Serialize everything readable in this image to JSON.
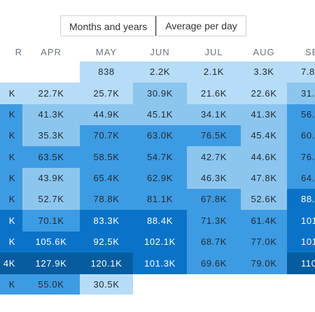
{
  "view_toggle": {
    "options": [
      "Months and years",
      "Average per day"
    ],
    "selected": "Months and years"
  },
  "colors": {
    "l1": "#b7dcf7",
    "l2": "#8cc6ef",
    "l3": "#3d9be3",
    "l4": "#0a73c7",
    "l5": "#065c9e"
  },
  "columns": [
    {
      "label": "R",
      "align": "right"
    },
    {
      "label": "APR"
    },
    {
      "label": "MAY"
    },
    {
      "label": "JUN"
    },
    {
      "label": "JUL"
    },
    {
      "label": "AUG"
    },
    {
      "label": "SE",
      "align": "left"
    }
  ],
  "rows": [
    [
      null,
      null,
      {
        "v": "838",
        "c": "l1"
      },
      {
        "v": "2.2K",
        "c": "l1"
      },
      {
        "v": "2.1K",
        "c": "l1"
      },
      {
        "v": "3.3K",
        "c": "l1"
      },
      {
        "v": "7.8",
        "c": "l1"
      }
    ],
    [
      {
        "v": "K",
        "c": "l1"
      },
      {
        "v": "22.7K",
        "c": "l1"
      },
      {
        "v": "25.7K",
        "c": "l1"
      },
      {
        "v": "30.9K",
        "c": "l2"
      },
      {
        "v": "21.6K",
        "c": "l1"
      },
      {
        "v": "22.6K",
        "c": "l1"
      },
      {
        "v": "31.",
        "c": "l2"
      }
    ],
    [
      {
        "v": "K",
        "c": "l3"
      },
      {
        "v": "41.3K",
        "c": "l2"
      },
      {
        "v": "44.9K",
        "c": "l2"
      },
      {
        "v": "45.1K",
        "c": "l2"
      },
      {
        "v": "34.1K",
        "c": "l2"
      },
      {
        "v": "41.3K",
        "c": "l2"
      },
      {
        "v": "56.",
        "c": "l3"
      }
    ],
    [
      {
        "v": "K",
        "c": "l3"
      },
      {
        "v": "35.3K",
        "c": "l2"
      },
      {
        "v": "70.7K",
        "c": "l3"
      },
      {
        "v": "63.0K",
        "c": "l3"
      },
      {
        "v": "76.5K",
        "c": "l3"
      },
      {
        "v": "45.4K",
        "c": "l2"
      },
      {
        "v": "60.",
        "c": "l3"
      }
    ],
    [
      {
        "v": "K",
        "c": "l3"
      },
      {
        "v": "63.5K",
        "c": "l3"
      },
      {
        "v": "58.5K",
        "c": "l3"
      },
      {
        "v": "54.7K",
        "c": "l3"
      },
      {
        "v": "42.7K",
        "c": "l2"
      },
      {
        "v": "44.6K",
        "c": "l2"
      },
      {
        "v": "76.",
        "c": "l3"
      }
    ],
    [
      {
        "v": "K",
        "c": "l3"
      },
      {
        "v": "43.9K",
        "c": "l2"
      },
      {
        "v": "65.4K",
        "c": "l3"
      },
      {
        "v": "62.9K",
        "c": "l3"
      },
      {
        "v": "46.3K",
        "c": "l2"
      },
      {
        "v": "47.8K",
        "c": "l2"
      },
      {
        "v": "64.",
        "c": "l3"
      }
    ],
    [
      {
        "v": "K",
        "c": "l3"
      },
      {
        "v": "52.7K",
        "c": "l2"
      },
      {
        "v": "78.8K",
        "c": "l3"
      },
      {
        "v": "81.1K",
        "c": "l3"
      },
      {
        "v": "67.8K",
        "c": "l3"
      },
      {
        "v": "52.6K",
        "c": "l2"
      },
      {
        "v": "88.",
        "c": "l4"
      }
    ],
    [
      {
        "v": "K",
        "c": "l4"
      },
      {
        "v": "70.1K",
        "c": "l3"
      },
      {
        "v": "83.3K",
        "c": "l4"
      },
      {
        "v": "88.4K",
        "c": "l4"
      },
      {
        "v": "71.3K",
        "c": "l3"
      },
      {
        "v": "61.4K",
        "c": "l3"
      },
      {
        "v": "101",
        "c": "l4"
      }
    ],
    [
      {
        "v": "K",
        "c": "l4"
      },
      {
        "v": "105.6K",
        "c": "l4"
      },
      {
        "v": "92.5K",
        "c": "l4"
      },
      {
        "v": "102.1K",
        "c": "l4"
      },
      {
        "v": "68.7K",
        "c": "l3"
      },
      {
        "v": "77.0K",
        "c": "l3"
      },
      {
        "v": "101",
        "c": "l4"
      }
    ],
    [
      {
        "v": "4K",
        "c": "l5"
      },
      {
        "v": "127.9K",
        "c": "l5"
      },
      {
        "v": "120.1K",
        "c": "l5"
      },
      {
        "v": "101.3K",
        "c": "l4"
      },
      {
        "v": "69.6K",
        "c": "l3"
      },
      {
        "v": "79.0K",
        "c": "l3"
      },
      {
        "v": "110",
        "c": "l5"
      }
    ],
    [
      {
        "v": "K",
        "c": "l3"
      },
      {
        "v": "55.0K",
        "c": "l3"
      },
      {
        "v": "30.5K",
        "c": "l1"
      },
      null,
      null,
      null,
      null
    ]
  ]
}
